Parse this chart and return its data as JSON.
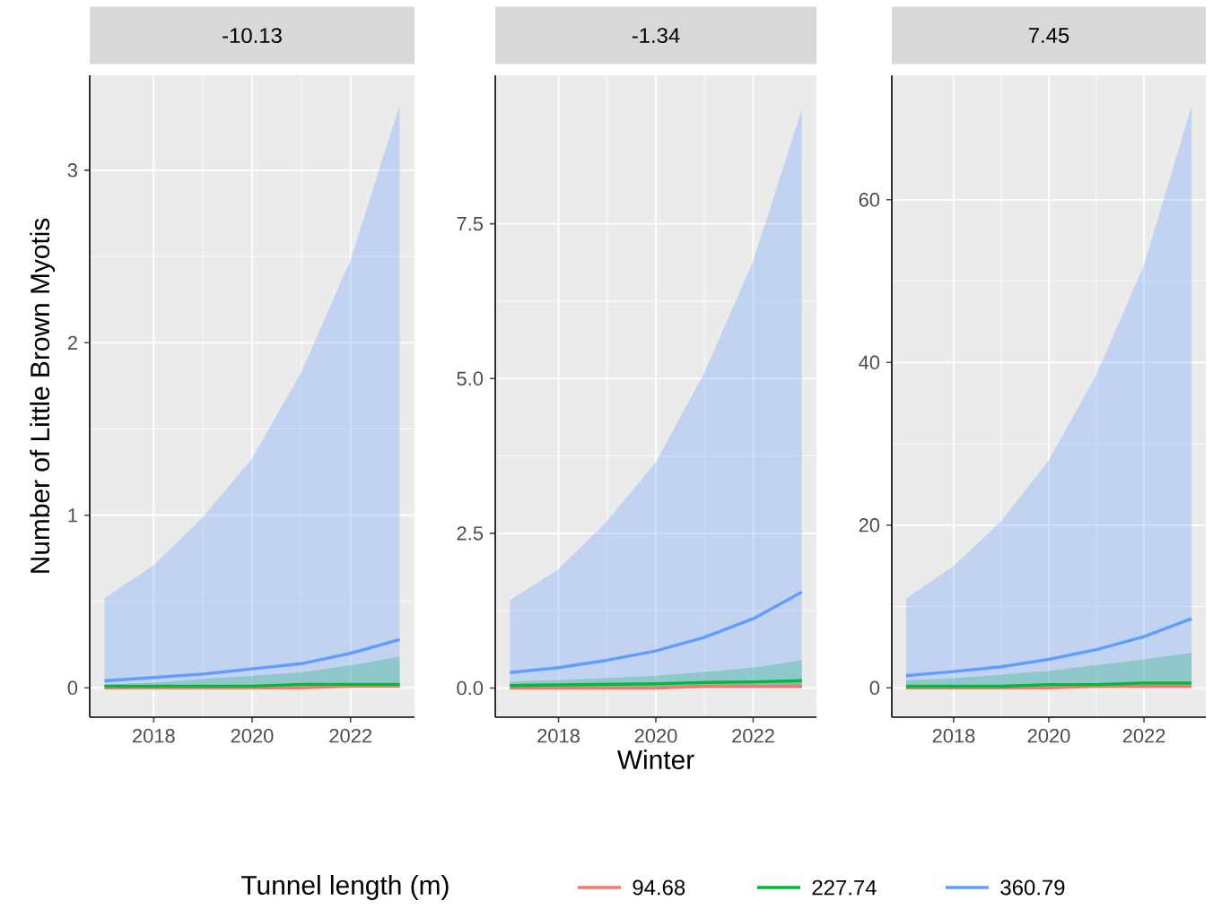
{
  "chart_data": [
    {
      "type": "line",
      "title": "-10.13",
      "ylabel": "Number of Little Brown Myotis",
      "x": [
        2017,
        2018,
        2019,
        2020,
        2021,
        2022,
        2023
      ],
      "xlim": [
        2016.7,
        2023.3
      ],
      "ylim": [
        -0.17,
        3.55
      ],
      "xticks": [
        2018,
        2020,
        2022
      ],
      "yticks": [
        0,
        1,
        2,
        3
      ],
      "grid": true,
      "series": [
        {
          "color": "#f8766d",
          "values": [
            0,
            0,
            0,
            0,
            0,
            0.01,
            0.01
          ],
          "lower": [
            0,
            0,
            0,
            0,
            0,
            0,
            0
          ],
          "upper": [
            0.01,
            0.01,
            0.012,
            0.014,
            0.017,
            0.021,
            0.026
          ]
        },
        {
          "color": "#00ba38",
          "values": [
            0.01,
            0.01,
            0.01,
            0.01,
            0.02,
            0.02,
            0.02
          ],
          "lower": [
            0,
            0,
            0,
            0,
            0,
            0,
            0
          ],
          "upper": [
            0.02,
            0.03,
            0.05,
            0.07,
            0.09,
            0.13,
            0.18
          ]
        },
        {
          "color": "#619cff",
          "values": [
            0.04,
            0.06,
            0.08,
            0.11,
            0.14,
            0.2,
            0.28
          ],
          "lower": [
            0,
            0,
            0,
            0,
            0,
            0,
            0
          ],
          "upper": [
            0.52,
            0.71,
            0.99,
            1.33,
            1.83,
            2.48,
            3.38
          ]
        }
      ]
    },
    {
      "type": "line",
      "title": "-1.34",
      "xlabel": "Winter",
      "legend_title": "Tunnel length (m)",
      "legend": "bottom",
      "x": [
        2017,
        2018,
        2019,
        2020,
        2021,
        2022,
        2023
      ],
      "xlim": [
        2016.7,
        2023.3
      ],
      "ylim": [
        -0.47,
        9.9
      ],
      "xticks": [
        2018,
        2020,
        2022
      ],
      "yticks": [
        {
          "value": 0,
          "label": "0.0"
        },
        {
          "value": 2.5,
          "label": "2.5"
        },
        {
          "value": 5,
          "label": "5.0"
        },
        {
          "value": 7.5,
          "label": "7.5"
        }
      ],
      "grid": true,
      "series": [
        {
          "name": "94.68",
          "color": "#f8766d",
          "values": [
            0,
            0,
            0,
            0,
            0.03,
            0.03,
            0.03
          ],
          "lower": [
            0,
            0,
            0,
            0,
            0,
            0,
            0
          ],
          "upper": [
            0.03,
            0.04,
            0.05,
            0.06,
            0.08,
            0.1,
            0.13
          ]
        },
        {
          "name": "227.74",
          "color": "#00ba38",
          "values": [
            0.04,
            0.05,
            0.06,
            0.07,
            0.09,
            0.1,
            0.12
          ],
          "lower": [
            0,
            0,
            0,
            0,
            0,
            0,
            0
          ],
          "upper": [
            0.1,
            0.13,
            0.16,
            0.2,
            0.26,
            0.33,
            0.45
          ]
        },
        {
          "name": "360.79",
          "color": "#619cff",
          "values": [
            0.25,
            0.33,
            0.45,
            0.6,
            0.82,
            1.12,
            1.55
          ],
          "lower": [
            0,
            0,
            0,
            0,
            0,
            0,
            0
          ],
          "upper": [
            1.42,
            1.92,
            2.7,
            3.65,
            5.1,
            6.9,
            9.35
          ]
        }
      ]
    },
    {
      "type": "line",
      "title": "7.45",
      "x": [
        2017,
        2018,
        2019,
        2020,
        2021,
        2022,
        2023
      ],
      "xlim": [
        2016.7,
        2023.3
      ],
      "ylim": [
        -3.6,
        75.3
      ],
      "xticks": [
        2018,
        2020,
        2022
      ],
      "yticks": [
        0,
        20,
        40,
        60
      ],
      "grid": true,
      "series": [
        {
          "color": "#f8766d",
          "values": [
            0,
            0,
            0,
            0,
            0.2,
            0.2,
            0.2
          ],
          "lower": [
            0,
            0,
            0,
            0,
            0,
            0,
            0
          ],
          "upper": [
            0.2,
            0.25,
            0.3,
            0.4,
            0.5,
            0.6,
            0.8
          ]
        },
        {
          "color": "#00ba38",
          "values": [
            0.2,
            0.2,
            0.2,
            0.4,
            0.4,
            0.6,
            0.6
          ],
          "lower": [
            0,
            0,
            0,
            0,
            0,
            0,
            0
          ],
          "upper": [
            0.9,
            1.2,
            1.6,
            2.1,
            2.8,
            3.5,
            4.3
          ]
        },
        {
          "color": "#619cff",
          "values": [
            1.5,
            2.0,
            2.6,
            3.5,
            4.7,
            6.3,
            8.5
          ],
          "lower": [
            0,
            0,
            0,
            0,
            0,
            0,
            0
          ],
          "upper": [
            11,
            15,
            20.5,
            28,
            38.5,
            52,
            71.5
          ]
        }
      ]
    }
  ]
}
